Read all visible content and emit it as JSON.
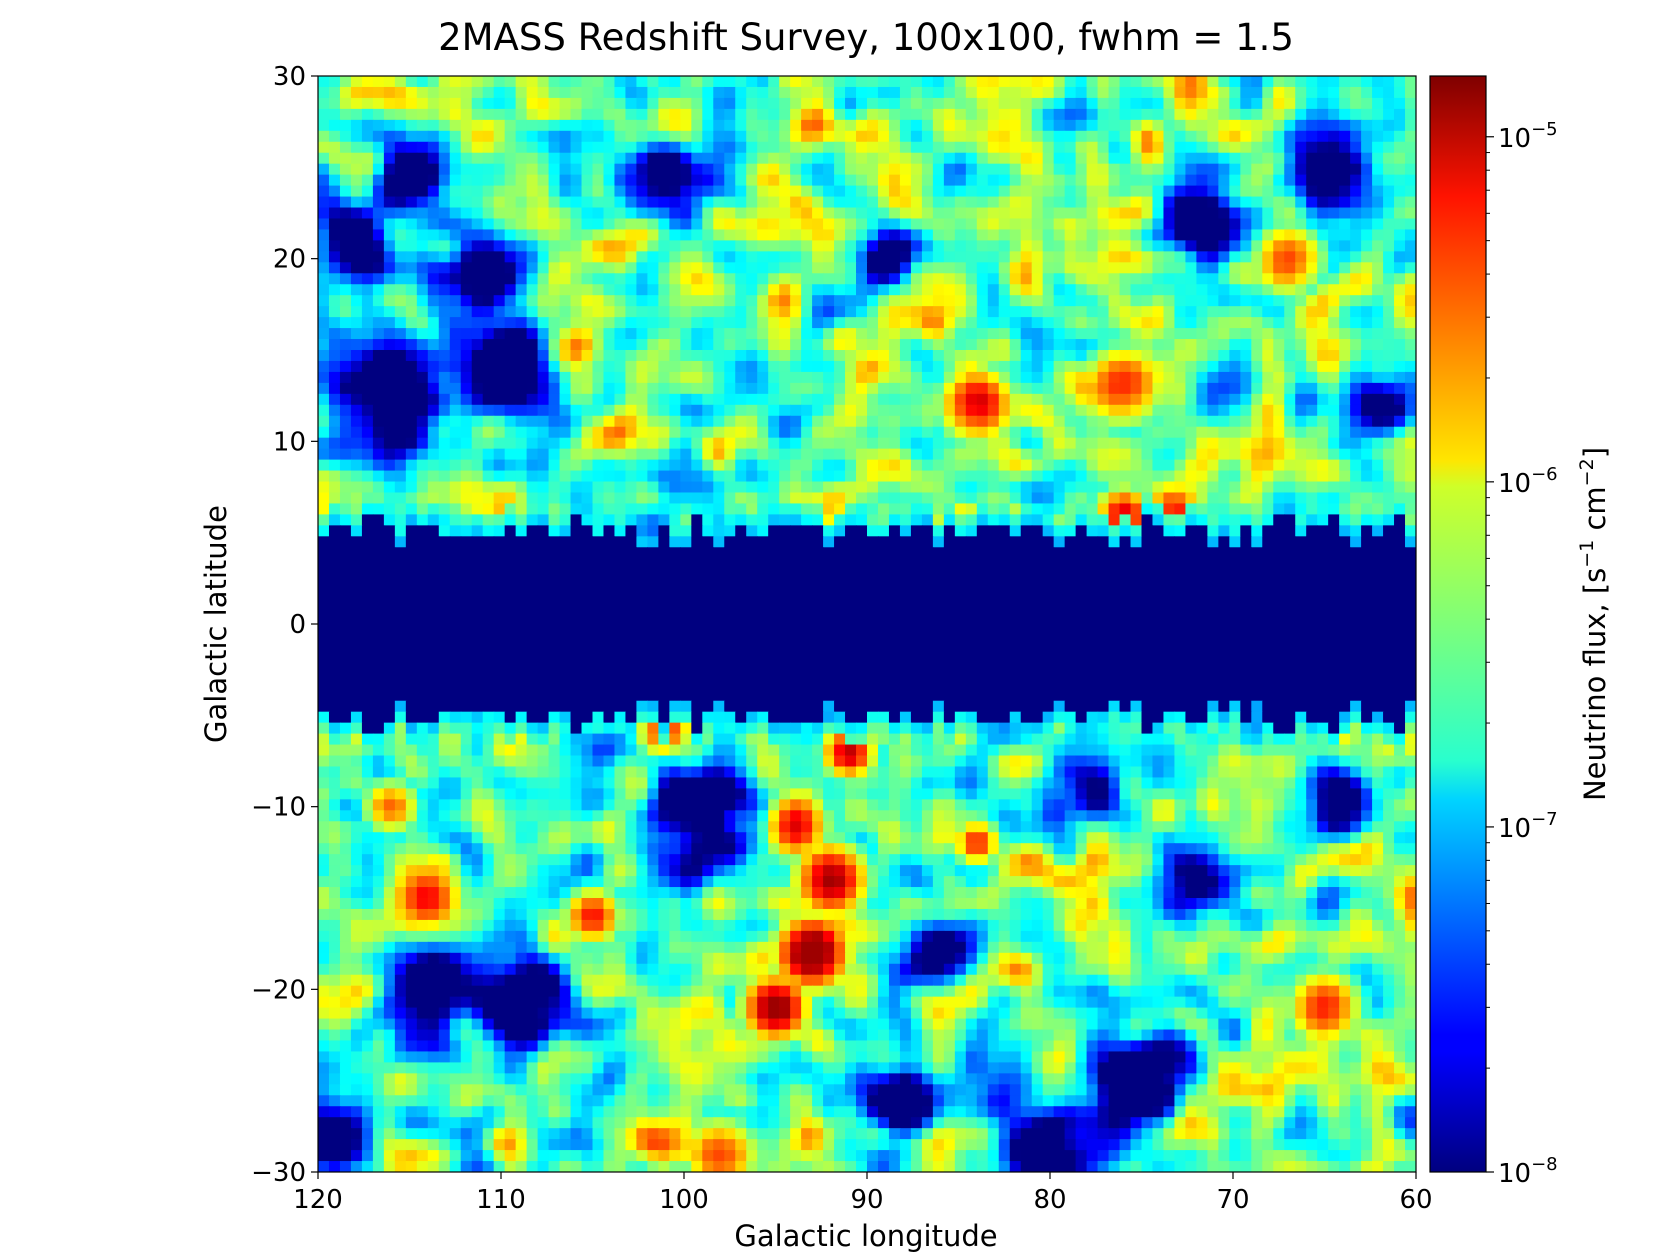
{
  "chart_data": {
    "type": "heatmap",
    "title": "2MASS Redshift Survey, 100x100, fwhm = 1.5",
    "xlabel": "Galactic longitude",
    "ylabel": "Galactic latitude",
    "xlim": [
      120,
      60
    ],
    "ylim": [
      -30,
      30
    ],
    "x_ticks": [
      120,
      110,
      100,
      90,
      80,
      70,
      60
    ],
    "x_tick_labels": [
      "120",
      "110",
      "100",
      "90",
      "80",
      "70",
      "60"
    ],
    "y_ticks": [
      30,
      20,
      10,
      0,
      -10,
      -20,
      -30
    ],
    "y_tick_labels": [
      "30",
      "20",
      "10",
      "0",
      "−10",
      "−20",
      "−30"
    ],
    "grid_size": [
      100,
      100
    ],
    "colormap": "jet",
    "colorbar": {
      "label_main": "Neutrino flux, [s",
      "label_sup1": "−1",
      "label_mid": " cm",
      "label_sup2": "−2",
      "label_end": "]",
      "scale": "log",
      "range": [
        1e-08,
        1.5e-05
      ],
      "ticks": [
        {
          "value": 1e-05,
          "base": "10",
          "exp": "−5"
        },
        {
          "value": 1e-06,
          "base": "10",
          "exp": "−6"
        },
        {
          "value": 1e-07,
          "base": "10",
          "exp": "−7"
        },
        {
          "value": 1e-08,
          "base": "10",
          "exp": "−8"
        }
      ]
    },
    "masked_band": {
      "lat_min": -5,
      "lat_max": 5,
      "value": 1e-08
    },
    "hotspots": [
      {
        "lon": 93,
        "lat": -18,
        "flux": 1.2e-05,
        "sigma": 2.0
      },
      {
        "lon": 95,
        "lat": -21,
        "flux": 9e-06,
        "sigma": 1.8
      },
      {
        "lon": 92,
        "lat": -14,
        "flux": 7e-06,
        "sigma": 2.0
      },
      {
        "lon": 94,
        "lat": -11,
        "flux": 5e-06,
        "sigma": 1.8
      },
      {
        "lon": 91,
        "lat": -7,
        "flux": 6e-06,
        "sigma": 1.4
      },
      {
        "lon": 101,
        "lat": -6,
        "flux": 4e-06,
        "sigma": 1.5
      },
      {
        "lon": 105,
        "lat": -16,
        "flux": 4e-06,
        "sigma": 1.5
      },
      {
        "lon": 114,
        "lat": -15,
        "flux": 3e-06,
        "sigma": 2.0
      },
      {
        "lon": 84,
        "lat": 12,
        "flux": 5e-06,
        "sigma": 2.0
      },
      {
        "lon": 76,
        "lat": 13,
        "flux": 3e-06,
        "sigma": 2.2
      },
      {
        "lon": 76,
        "lat": 6,
        "flux": 4e-06,
        "sigma": 1.5
      },
      {
        "lon": 67,
        "lat": 20,
        "flux": 2.5e-06,
        "sigma": 2.0
      },
      {
        "lon": 65,
        "lat": -21,
        "flux": 3e-06,
        "sigma": 2.0
      },
      {
        "lon": 98,
        "lat": -29,
        "flux": 2.5e-06,
        "sigma": 2.0
      },
      {
        "lon": 84,
        "lat": -12,
        "flux": 3e-06,
        "sigma": 1.2
      },
      {
        "lon": 116,
        "lat": -10,
        "flux": 2e-06,
        "sigma": 1.5
      }
    ],
    "voids": [
      {
        "lon": 101,
        "lat": 24,
        "sigma": 1.5
      },
      {
        "lon": 111,
        "lat": 19,
        "sigma": 1.5
      },
      {
        "lon": 116,
        "lat": 13,
        "sigma": 2.0
      },
      {
        "lon": 110,
        "lat": 14,
        "sigma": 1.5
      },
      {
        "lon": 118,
        "lat": 21,
        "sigma": 1.5
      },
      {
        "lon": 115,
        "lat": 25,
        "sigma": 1.2
      },
      {
        "lon": 72,
        "lat": 22,
        "sigma": 1.5
      },
      {
        "lon": 65,
        "lat": 25,
        "sigma": 1.5
      },
      {
        "lon": 62,
        "lat": 12,
        "sigma": 1.3
      },
      {
        "lon": 99,
        "lat": -10,
        "sigma": 2.0
      },
      {
        "lon": 109,
        "lat": -21,
        "sigma": 1.8
      },
      {
        "lon": 80,
        "lat": -29,
        "sigma": 2.0
      },
      {
        "lon": 75,
        "lat": -25,
        "sigma": 1.6
      },
      {
        "lon": 72,
        "lat": -14,
        "sigma": 1.5
      },
      {
        "lon": 88,
        "lat": -26,
        "sigma": 1.3
      },
      {
        "lon": 86,
        "lat": -18,
        "sigma": 1.2
      },
      {
        "lon": 119,
        "lat": -28,
        "sigma": 1.3
      },
      {
        "lon": 114,
        "lat": -20,
        "sigma": 1.3
      },
      {
        "lon": 78,
        "lat": -9,
        "sigma": 1.3
      },
      {
        "lon": 64,
        "lat": -10,
        "sigma": 1.2
      },
      {
        "lon": 89,
        "lat": 20,
        "sigma": 1.0
      }
    ]
  }
}
